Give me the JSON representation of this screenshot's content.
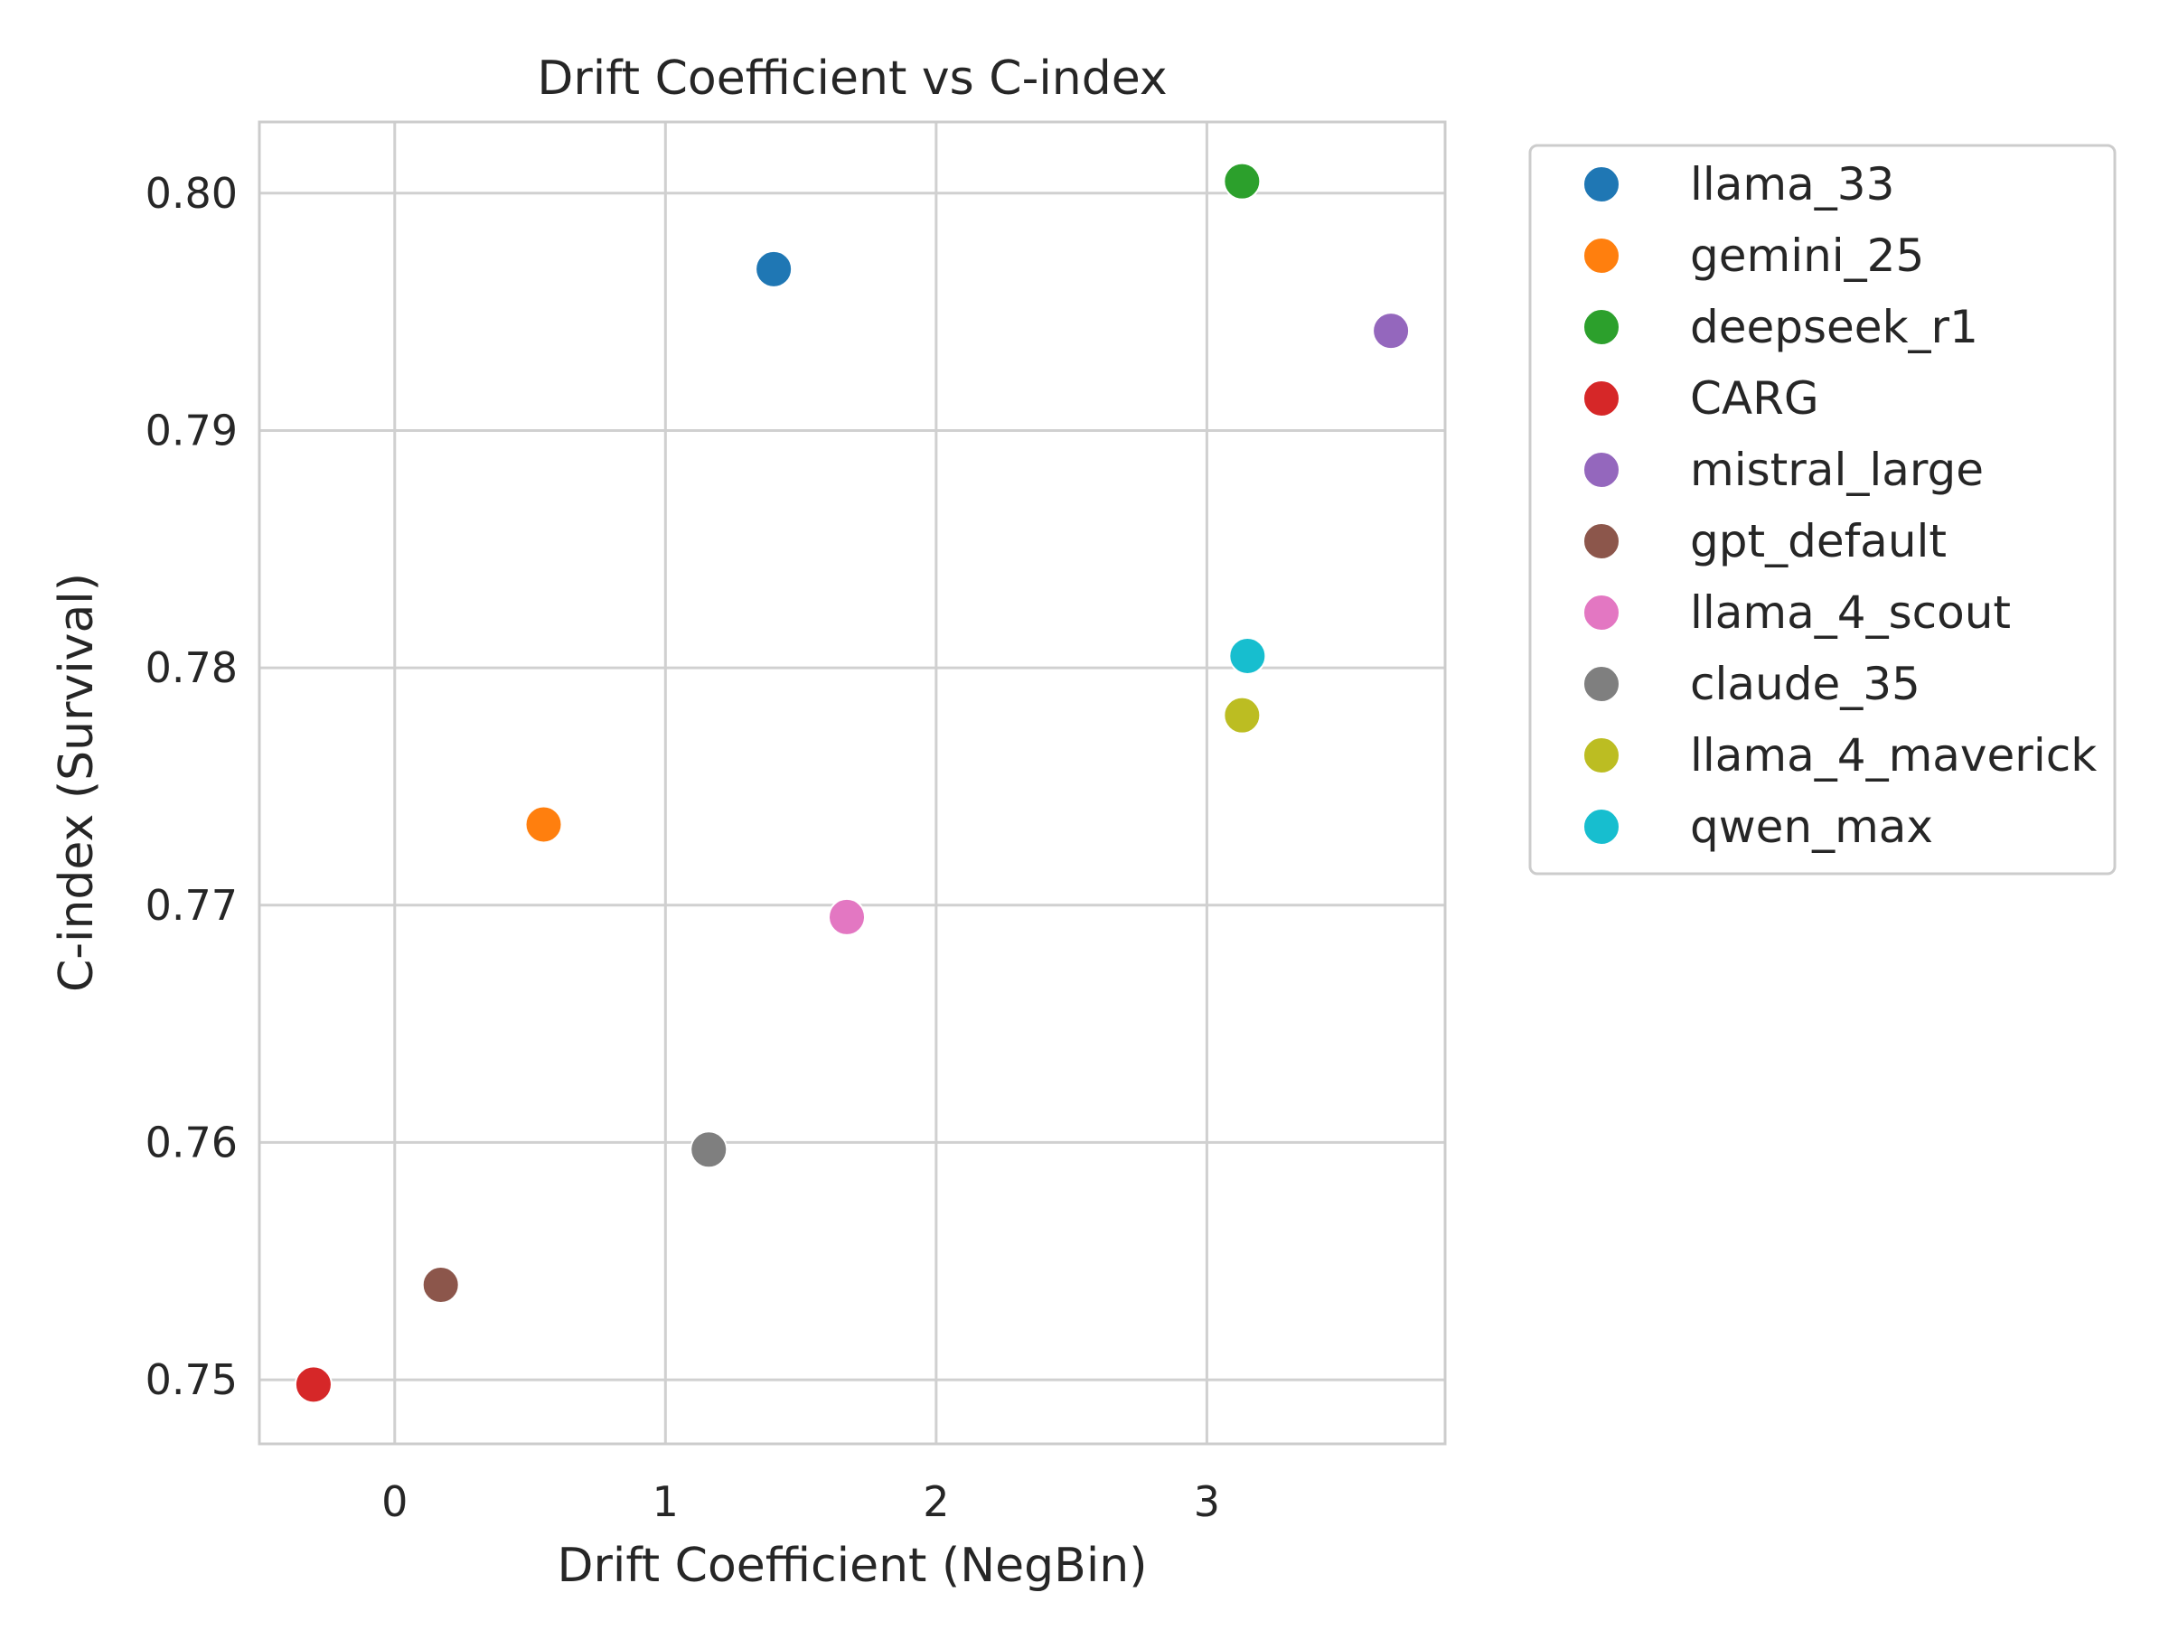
{
  "chart_data": {
    "type": "scatter",
    "title": "Drift Coefficient vs C-index",
    "xlabel": "Drift Coefficient (NegBin)",
    "ylabel": "C-index (Survival)",
    "xlim": [
      -0.5,
      3.88
    ],
    "ylim": [
      0.7473,
      0.803
    ],
    "xticks": [
      0,
      1,
      2,
      3
    ],
    "xtick_labels": [
      "0",
      "1",
      "2",
      "3"
    ],
    "yticks": [
      0.75,
      0.76,
      0.77,
      0.78,
      0.79,
      0.8
    ],
    "ytick_labels": [
      "0.75",
      "0.76",
      "0.77",
      "0.78",
      "0.79",
      "0.80"
    ],
    "grid": true,
    "legend_position": "outside-right",
    "series": [
      {
        "name": "llama_33",
        "color": "#1f77b4",
        "x": 1.4,
        "y": 0.7968
      },
      {
        "name": "gemini_25",
        "color": "#ff7f0e",
        "x": 0.55,
        "y": 0.7734
      },
      {
        "name": "deepseek_r1",
        "color": "#2ca02c",
        "x": 3.13,
        "y": 0.8005
      },
      {
        "name": "CARG",
        "color": "#d62728",
        "x": -0.3,
        "y": 0.7498
      },
      {
        "name": "mistral_large",
        "color": "#9467bd",
        "x": 3.68,
        "y": 0.7942
      },
      {
        "name": "gpt_default",
        "color": "#8c564b",
        "x": 0.17,
        "y": 0.754
      },
      {
        "name": "llama_4_scout",
        "color": "#e377c2",
        "x": 1.67,
        "y": 0.7695
      },
      {
        "name": "claude_35",
        "color": "#7f7f7f",
        "x": 1.16,
        "y": 0.7597
      },
      {
        "name": "llama_4_maverick",
        "color": "#bcbd22",
        "x": 3.13,
        "y": 0.778
      },
      {
        "name": "qwen_max",
        "color": "#17becf",
        "x": 3.15,
        "y": 0.7805
      }
    ]
  }
}
